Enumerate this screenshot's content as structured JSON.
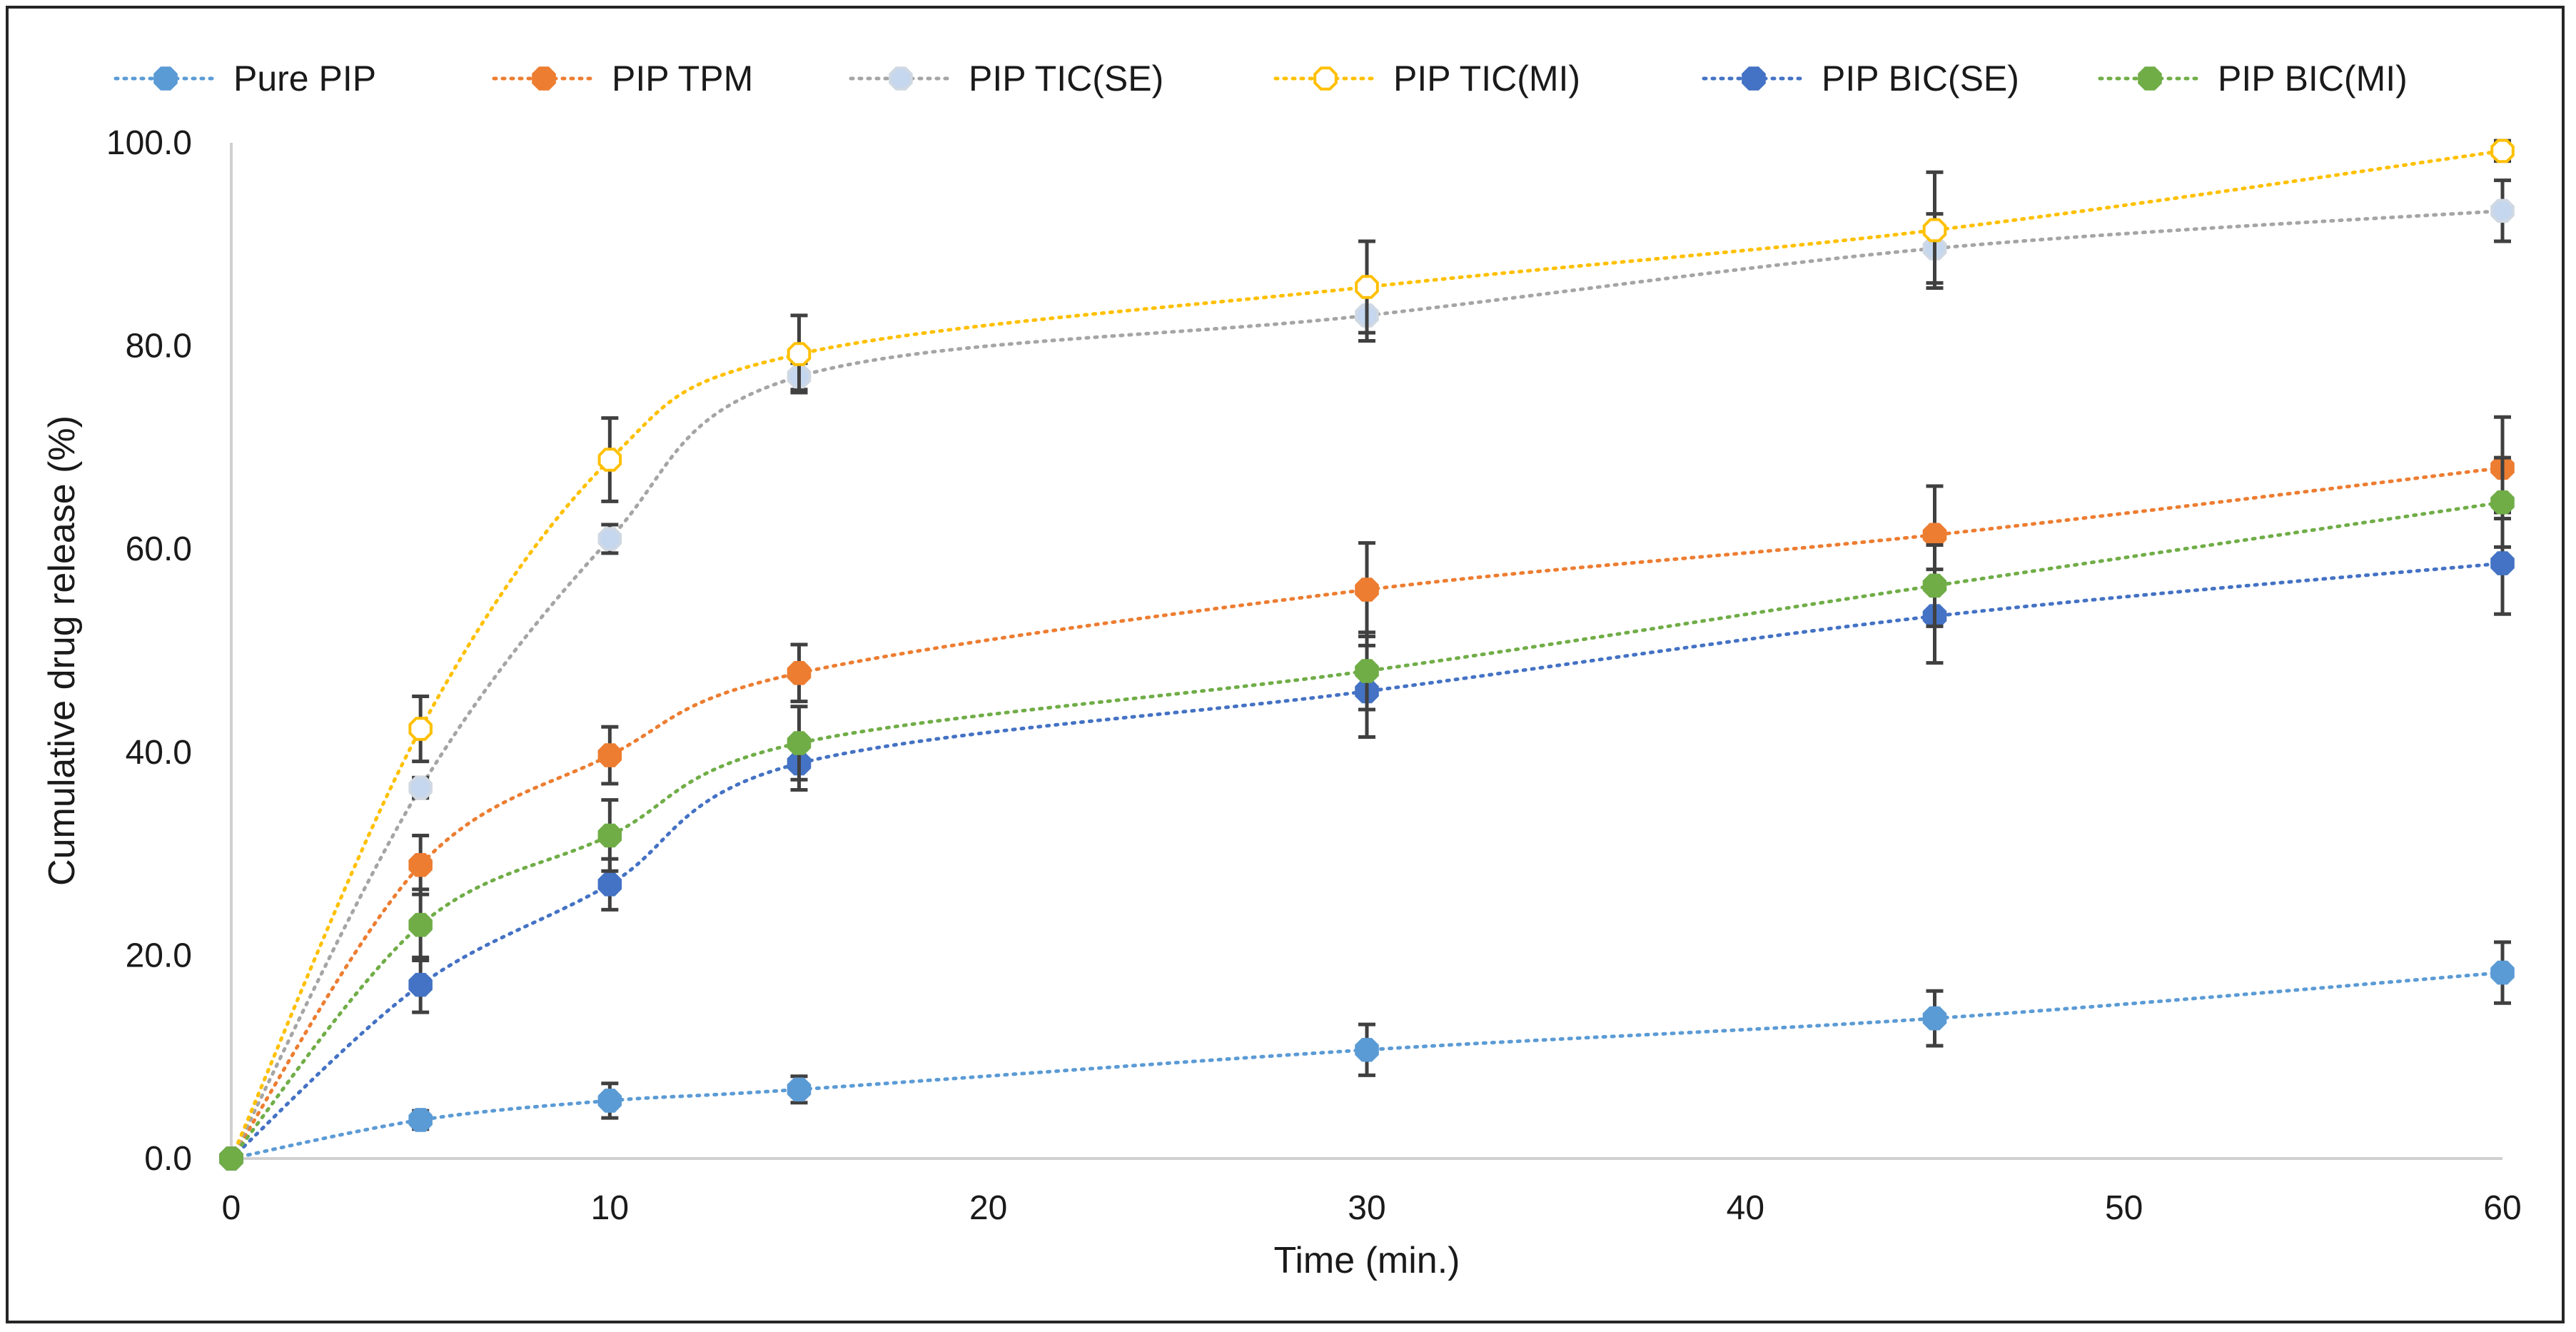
{
  "chart_data": {
    "type": "line",
    "title": "",
    "xlabel": "Time (min.)",
    "ylabel": "Cumulative drug release (%)",
    "xlim": [
      0,
      60
    ],
    "ylim": [
      0,
      100
    ],
    "x": [
      0,
      5,
      10,
      15,
      30,
      45,
      60
    ],
    "x_ticks": [
      "0",
      "10",
      "20",
      "30",
      "40",
      "50",
      "60"
    ],
    "x_tick_values": [
      0,
      10,
      20,
      30,
      40,
      50,
      60
    ],
    "y_ticks": [
      "0.0",
      "20.0",
      "40.0",
      "60.0",
      "80.0",
      "100.0"
    ],
    "y_tick_values": [
      0,
      20,
      40,
      60,
      80,
      100
    ],
    "grid": false,
    "legend_position": "top",
    "series": [
      {
        "name": "Pure PIP",
        "color": "#5b9bd5",
        "marker": "filled",
        "values": [
          0,
          3.8,
          5.7,
          6.8,
          10.7,
          13.8,
          18.3
        ],
        "errors": [
          0,
          0.9,
          1.7,
          1.3,
          2.5,
          2.7,
          3.0
        ]
      },
      {
        "name": "PIP TPM",
        "color": "#ed7d31",
        "marker": "filled",
        "values": [
          0,
          28.9,
          39.7,
          47.8,
          56.0,
          61.4,
          68.0
        ],
        "errors": [
          0,
          2.9,
          2.8,
          2.8,
          4.6,
          4.8,
          5.0
        ]
      },
      {
        "name": "PIP TIC(SE)",
        "color": "#a5a5a5",
        "marker": "light",
        "fill": "#c5d7ee",
        "values": [
          0,
          36.5,
          61.0,
          77.0,
          83.0,
          89.6,
          93.3
        ],
        "errors": [
          0,
          1.0,
          1.4,
          1.3,
          2.5,
          3.4,
          3.0
        ]
      },
      {
        "name": "PIP TIC(MI)",
        "color": "#ffc000",
        "marker": "hollow",
        "values": [
          0,
          42.3,
          68.8,
          79.2,
          85.8,
          91.4,
          99.2
        ],
        "errors": [
          0,
          3.2,
          4.1,
          3.8,
          4.5,
          5.7,
          1.0
        ]
      },
      {
        "name": "PIP BIC(SE)",
        "color": "#4472c4",
        "marker": "filled",
        "values": [
          0,
          17.1,
          27.0,
          38.9,
          46.0,
          53.4,
          58.6
        ],
        "errors": [
          0,
          2.7,
          2.5,
          2.6,
          4.5,
          4.6,
          5.0
        ]
      },
      {
        "name": "PIP BIC(MI)",
        "color": "#70ad47",
        "marker": "filled",
        "values": [
          0,
          23.0,
          31.8,
          40.9,
          48.0,
          56.4,
          64.6
        ],
        "errors": [
          0,
          3.5,
          3.5,
          3.6,
          3.8,
          4.0,
          4.4
        ]
      }
    ]
  }
}
